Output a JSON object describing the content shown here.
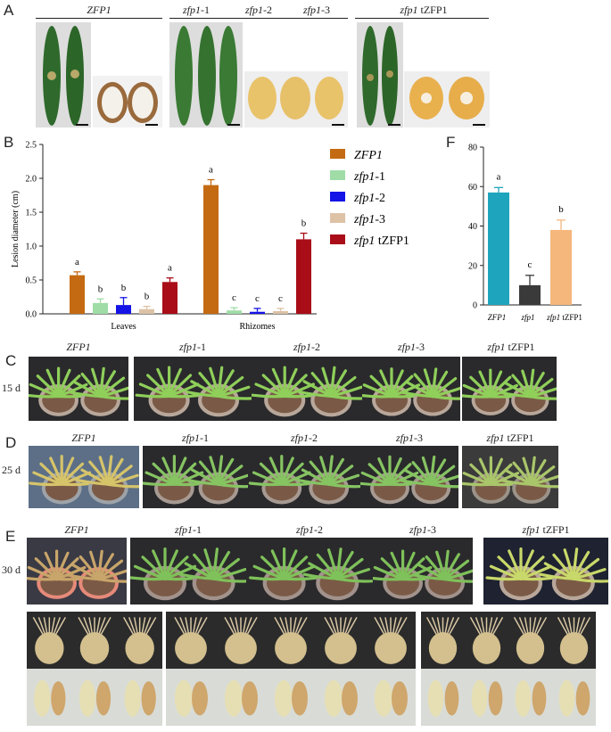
{
  "panels": {
    "A": "A",
    "B": "B",
    "C": "C",
    "D": "D",
    "E": "E",
    "F": "F"
  },
  "genotypes": {
    "wt": "ZFP1",
    "m1_base": "zfp1",
    "m1_suffix": "-1",
    "m2_base": "zfp1",
    "m2_suffix": "-2",
    "m3_base": "zfp1",
    "m3_suffix": "-3",
    "comp_base": "zfp1",
    "comp_suffix": " tZFP1"
  },
  "days": {
    "c": "15 d",
    "d": "25 d",
    "e": "30 d"
  },
  "chart_data": [
    {
      "panel": "B",
      "type": "bar",
      "ylabel": "Lesion diameter (cm)",
      "ylim": [
        0,
        2.5
      ],
      "yticks": [
        "0.0",
        "0.5",
        "1.0",
        "1.5",
        "2.0",
        "2.5"
      ],
      "categories": [
        "Leaves",
        "Rhizomes"
      ],
      "legend_position": "right",
      "series": [
        {
          "name": "ZFP1",
          "italic": true,
          "color": "#c46a12",
          "values": [
            0.57,
            1.9
          ],
          "errors": [
            0.05,
            0.08
          ],
          "letters": [
            "a",
            "a"
          ]
        },
        {
          "name": "zfp1-1",
          "color": "#9fdca6",
          "values": [
            0.16,
            0.05
          ],
          "errors": [
            0.06,
            0.04
          ],
          "letters": [
            "b",
            "c"
          ]
        },
        {
          "name": "zfp1-2",
          "color": "#1414e6",
          "values": [
            0.13,
            0.03
          ],
          "errors": [
            0.11,
            0.05
          ],
          "letters": [
            "b",
            "c"
          ]
        },
        {
          "name": "zfp1-3",
          "color": "#ddc2a6",
          "values": [
            0.07,
            0.04
          ],
          "errors": [
            0.04,
            0.04
          ],
          "letters": [
            "b",
            "c"
          ]
        },
        {
          "name": "zfp1 tZFP1",
          "color": "#a80d18",
          "values": [
            0.47,
            1.1
          ],
          "errors": [
            0.06,
            0.09
          ],
          "letters": [
            "a",
            "b"
          ]
        }
      ]
    },
    {
      "panel": "F",
      "type": "bar",
      "ylim": [
        0,
        80
      ],
      "yticks": [
        "0",
        "20",
        "40",
        "60",
        "80"
      ],
      "categories": [
        "ZFP1",
        "zfp1",
        "zfp1 tZFP1"
      ],
      "values": [
        57,
        10,
        38
      ],
      "errors": [
        2.5,
        5,
        5
      ],
      "letters": [
        "a",
        "c",
        "b"
      ],
      "colors": [
        "#1ea5bd",
        "#3a3a3a",
        "#f5b77c"
      ]
    }
  ]
}
